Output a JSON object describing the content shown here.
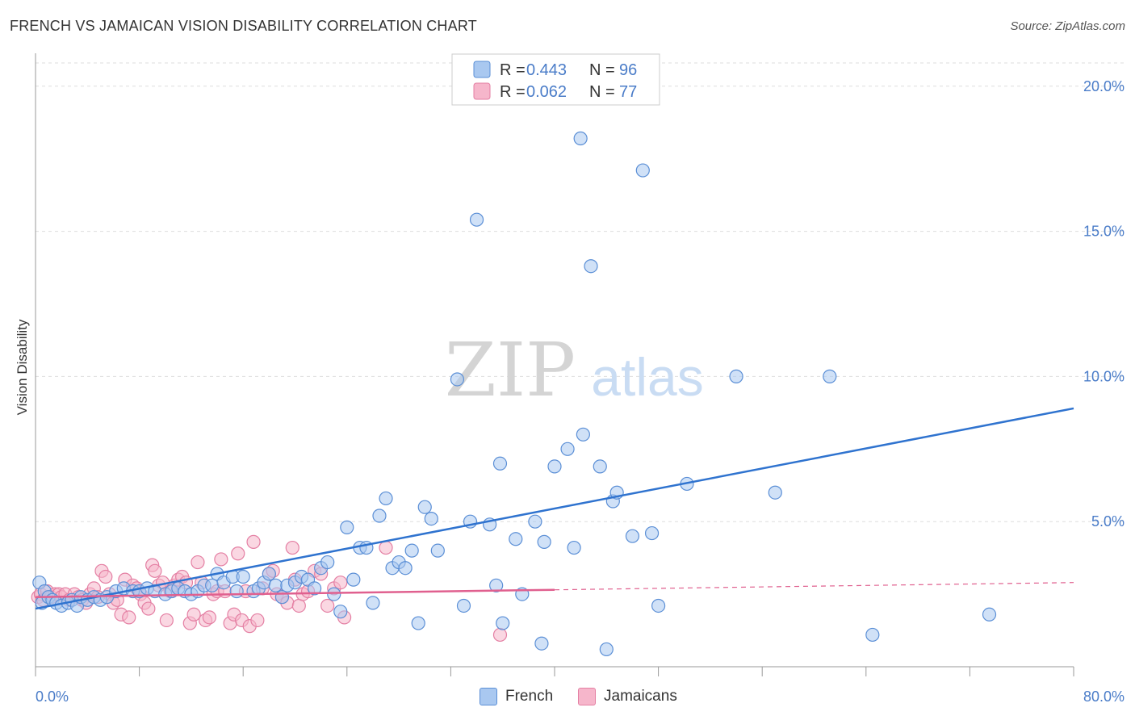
{
  "header": {
    "title": "FRENCH VS JAMAICAN VISION DISABILITY CORRELATION CHART",
    "source": "Source: ZipAtlas.com"
  },
  "watermark": {
    "zip": "ZIP",
    "atlas": "atlas"
  },
  "colors": {
    "french_fill": "#a9c8f0",
    "french_stroke": "#5b8fd6",
    "french_line": "#2f73cf",
    "jamaican_fill": "#f6b6cb",
    "jamaican_stroke": "#e47fa3",
    "jamaican_line": "#e0608f",
    "tick_text": "#4a7cc8",
    "grid": "#dddddd"
  },
  "legend": {
    "rows": [
      {
        "r_label": "R = ",
        "r_value": "0.443",
        "n_label": "N = ",
        "n_value": "96"
      },
      {
        "r_label": "R = ",
        "r_value": "0.062",
        "n_label": "N = ",
        "n_value": "77"
      }
    ]
  },
  "chart_data": {
    "type": "scatter",
    "title": "FRENCH VS JAMAICAN VISION DISABILITY CORRELATION CHART",
    "xlabel": "",
    "ylabel": "Vision Disability",
    "xlim": [
      0,
      80
    ],
    "ylim": [
      0,
      20.8
    ],
    "x_tick_labels": [
      "0.0%",
      "80.0%"
    ],
    "y_ticks": [
      5,
      10,
      15,
      20
    ],
    "y_tick_labels": [
      "5.0%",
      "10.0%",
      "15.0%",
      "20.0%"
    ],
    "grid": true,
    "legend_position": "top-center",
    "series": [
      {
        "name": "French",
        "r": 0.443,
        "n": 96,
        "trend": {
          "x": [
            0,
            80
          ],
          "y": [
            2.0,
            8.9
          ],
          "dashed_from": null
        },
        "points": [
          [
            0.3,
            2.9
          ],
          [
            0.5,
            2.2
          ],
          [
            0.7,
            2.6
          ],
          [
            1.0,
            2.4
          ],
          [
            1.3,
            2.3
          ],
          [
            1.6,
            2.2
          ],
          [
            2.0,
            2.1
          ],
          [
            2.5,
            2.2
          ],
          [
            2.8,
            2.3
          ],
          [
            3.2,
            2.1
          ],
          [
            3.5,
            2.4
          ],
          [
            4.0,
            2.3
          ],
          [
            4.5,
            2.4
          ],
          [
            5.0,
            2.3
          ],
          [
            5.5,
            2.4
          ],
          [
            6.2,
            2.6
          ],
          [
            6.8,
            2.7
          ],
          [
            7.5,
            2.6
          ],
          [
            8.0,
            2.6
          ],
          [
            8.6,
            2.7
          ],
          [
            9.2,
            2.6
          ],
          [
            10.0,
            2.5
          ],
          [
            10.5,
            2.6
          ],
          [
            11.0,
            2.7
          ],
          [
            11.5,
            2.6
          ],
          [
            12.0,
            2.5
          ],
          [
            12.5,
            2.6
          ],
          [
            13.0,
            2.8
          ],
          [
            13.6,
            2.8
          ],
          [
            14.0,
            3.2
          ],
          [
            14.5,
            2.9
          ],
          [
            15.2,
            3.1
          ],
          [
            15.5,
            2.6
          ],
          [
            16.0,
            3.1
          ],
          [
            16.8,
            2.6
          ],
          [
            17.2,
            2.7
          ],
          [
            17.6,
            2.9
          ],
          [
            18.0,
            3.2
          ],
          [
            18.5,
            2.8
          ],
          [
            19.0,
            2.4
          ],
          [
            19.4,
            2.8
          ],
          [
            20.0,
            2.9
          ],
          [
            20.5,
            3.1
          ],
          [
            21.0,
            3.0
          ],
          [
            21.5,
            2.7
          ],
          [
            22.0,
            3.4
          ],
          [
            22.5,
            3.6
          ],
          [
            23.0,
            2.5
          ],
          [
            23.5,
            1.9
          ],
          [
            24.0,
            4.8
          ],
          [
            24.5,
            3.0
          ],
          [
            25.0,
            4.1
          ],
          [
            25.5,
            4.1
          ],
          [
            26.0,
            2.2
          ],
          [
            26.5,
            5.2
          ],
          [
            27.0,
            5.8
          ],
          [
            27.5,
            3.4
          ],
          [
            28.0,
            3.6
          ],
          [
            28.5,
            3.4
          ],
          [
            29.0,
            4.0
          ],
          [
            29.5,
            1.5
          ],
          [
            30.0,
            5.5
          ],
          [
            30.5,
            5.1
          ],
          [
            31.0,
            4.0
          ],
          [
            32.5,
            9.9
          ],
          [
            33.0,
            2.1
          ],
          [
            33.5,
            5.0
          ],
          [
            34.0,
            15.4
          ],
          [
            35.0,
            4.9
          ],
          [
            35.5,
            2.8
          ],
          [
            35.8,
            7.0
          ],
          [
            36.0,
            1.5
          ],
          [
            37.0,
            4.4
          ],
          [
            37.5,
            2.5
          ],
          [
            38.5,
            5.0
          ],
          [
            39.0,
            0.8
          ],
          [
            39.2,
            4.3
          ],
          [
            40.0,
            6.9
          ],
          [
            41.0,
            7.5
          ],
          [
            41.5,
            4.1
          ],
          [
            42.0,
            18.2
          ],
          [
            42.2,
            8.0
          ],
          [
            42.8,
            13.8
          ],
          [
            43.5,
            6.9
          ],
          [
            44.0,
            0.6
          ],
          [
            44.5,
            5.7
          ],
          [
            44.8,
            6.0
          ],
          [
            46.0,
            4.5
          ],
          [
            46.8,
            17.1
          ],
          [
            47.5,
            4.6
          ],
          [
            48.0,
            2.1
          ],
          [
            50.2,
            6.3
          ],
          [
            54.0,
            10.0
          ],
          [
            57.0,
            6.0
          ],
          [
            61.2,
            10.0
          ],
          [
            64.5,
            1.1
          ],
          [
            73.5,
            1.8
          ]
        ]
      },
      {
        "name": "Jamaicans",
        "r": 0.062,
        "n": 77,
        "trend": {
          "x": [
            0,
            80
          ],
          "y": [
            2.4,
            2.9
          ],
          "dashed_from": 40
        },
        "points": [
          [
            0.2,
            2.4
          ],
          [
            0.4,
            2.5
          ],
          [
            0.6,
            2.3
          ],
          [
            0.9,
            2.6
          ],
          [
            1.2,
            2.4
          ],
          [
            1.5,
            2.5
          ],
          [
            1.8,
            2.5
          ],
          [
            2.0,
            2.4
          ],
          [
            2.3,
            2.5
          ],
          [
            2.6,
            2.3
          ],
          [
            3.0,
            2.5
          ],
          [
            3.3,
            2.4
          ],
          [
            3.6,
            2.3
          ],
          [
            3.9,
            2.2
          ],
          [
            4.2,
            2.5
          ],
          [
            4.5,
            2.7
          ],
          [
            4.8,
            2.4
          ],
          [
            5.1,
            3.3
          ],
          [
            5.4,
            3.1
          ],
          [
            5.7,
            2.5
          ],
          [
            6.0,
            2.2
          ],
          [
            6.3,
            2.3
          ],
          [
            6.6,
            1.8
          ],
          [
            6.9,
            3.0
          ],
          [
            7.2,
            1.7
          ],
          [
            7.5,
            2.8
          ],
          [
            7.8,
            2.7
          ],
          [
            8.1,
            2.5
          ],
          [
            8.4,
            2.2
          ],
          [
            8.7,
            2.0
          ],
          [
            9.0,
            3.5
          ],
          [
            9.2,
            3.3
          ],
          [
            9.5,
            2.8
          ],
          [
            9.8,
            2.9
          ],
          [
            10.1,
            1.6
          ],
          [
            10.4,
            2.6
          ],
          [
            10.7,
            2.8
          ],
          [
            11.0,
            3.0
          ],
          [
            11.3,
            3.1
          ],
          [
            11.6,
            2.9
          ],
          [
            11.9,
            1.5
          ],
          [
            12.2,
            1.8
          ],
          [
            12.5,
            3.6
          ],
          [
            12.8,
            2.9
          ],
          [
            13.1,
            1.6
          ],
          [
            13.4,
            1.7
          ],
          [
            13.7,
            2.5
          ],
          [
            14.0,
            2.6
          ],
          [
            14.3,
            3.7
          ],
          [
            14.6,
            2.6
          ],
          [
            15.0,
            1.5
          ],
          [
            15.3,
            1.8
          ],
          [
            15.6,
            3.9
          ],
          [
            15.9,
            1.6
          ],
          [
            16.2,
            2.6
          ],
          [
            16.5,
            1.4
          ],
          [
            16.8,
            4.3
          ],
          [
            17.1,
            1.6
          ],
          [
            17.5,
            2.7
          ],
          [
            18.0,
            3.2
          ],
          [
            18.3,
            3.3
          ],
          [
            18.6,
            2.5
          ],
          [
            19.0,
            2.4
          ],
          [
            19.4,
            2.2
          ],
          [
            19.8,
            4.1
          ],
          [
            20.0,
            3.0
          ],
          [
            20.3,
            2.1
          ],
          [
            20.6,
            2.5
          ],
          [
            21.0,
            2.6
          ],
          [
            21.5,
            3.3
          ],
          [
            22.0,
            3.2
          ],
          [
            22.5,
            2.1
          ],
          [
            23.0,
            2.7
          ],
          [
            23.5,
            2.9
          ],
          [
            23.8,
            1.7
          ],
          [
            27.0,
            4.1
          ],
          [
            35.8,
            1.1
          ]
        ]
      }
    ]
  }
}
